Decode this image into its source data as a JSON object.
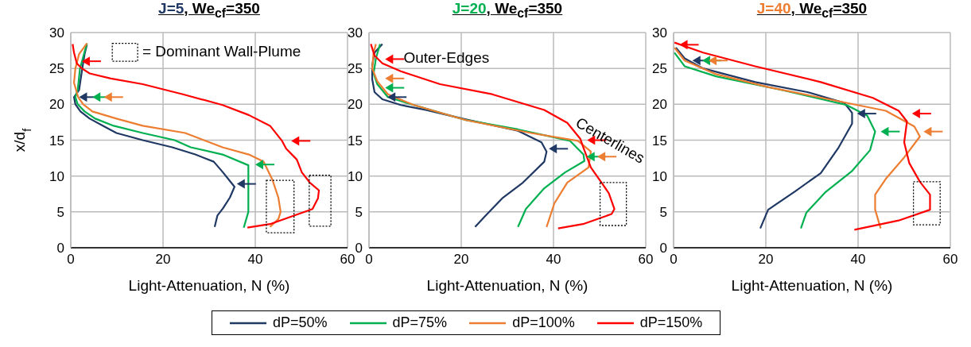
{
  "chart_data": [
    {
      "type": "line",
      "title": "J=5, We$_{cf}$=350",
      "xlabel": "Light-Attenuation, N (%)",
      "ylabel": "x/d$_{f}$",
      "xlim": [
        0,
        60
      ],
      "xticks": [
        0,
        20,
        40,
        60
      ],
      "ylim": [
        0,
        30
      ],
      "yticks": [
        0,
        5,
        10,
        15,
        20,
        25,
        30
      ],
      "grid": true,
      "marker": "none",
      "line_style": "solid",
      "annotations": [
        "= Dominant Wall-Plume"
      ],
      "series": [
        {
          "color": "#203864",
          "x": [
            31.2,
            31.8,
            33,
            34.5,
            35.5,
            34.5,
            33,
            31,
            27,
            22,
            15.6,
            9.9,
            7,
            4.1,
            2.1,
            1,
            0.7,
            1.8,
            2.5,
            3,
            3.5
          ],
          "values": [
            2.9,
            4.5,
            5.5,
            7,
            8.5,
            9.3,
            10.5,
            12,
            13,
            14,
            15,
            16,
            17,
            18,
            19,
            20,
            21,
            22,
            25,
            27,
            28.3
          ]
        },
        {
          "color": "#00b050",
          "x": [
            37.5,
            38.5,
            38.5,
            38.5,
            38.5,
            32.9,
            26,
            22.5,
            15.6,
            9.3,
            5.3,
            3,
            1.5,
            1,
            1.5,
            2,
            3.5
          ],
          "values": [
            2.8,
            5,
            8,
            10,
            11.5,
            13,
            14,
            15,
            16,
            17,
            18,
            19,
            20,
            21,
            22,
            25,
            28.5
          ]
        },
        {
          "color": "#ed7d31",
          "x": [
            43.2,
            45,
            45.5,
            45,
            43.7,
            41.8,
            38.6,
            32.9,
            24.8,
            15.6,
            9.9,
            4.7,
            2.7,
            1.6,
            0.7,
            1,
            1.8,
            3.5
          ],
          "values": [
            2.9,
            4,
            5,
            7,
            9.5,
            12,
            13,
            14,
            16,
            17,
            18,
            19,
            20,
            21,
            23,
            25,
            27,
            28.5
          ]
        },
        {
          "color": "#ff0000",
          "x": [
            38.3,
            43.2,
            52.4,
            53.6,
            53.8,
            51.8,
            50.1,
            49,
            46.7,
            45.8,
            43.2,
            38.6,
            32.9,
            24.3,
            15.6,
            8.7,
            4.1,
            2.4,
            1.3,
            0.7,
            0.4
          ],
          "values": [
            2.8,
            3.3,
            5.4,
            6.9,
            8,
            9.1,
            10.5,
            12.3,
            13.8,
            14.9,
            17,
            18.5,
            19.9,
            21.4,
            22.8,
            23.6,
            24.3,
            25,
            25.7,
            27.2,
            28.4
          ]
        }
      ]
    },
    {
      "type": "line",
      "title": "J=20, We$_{cf}$=350",
      "xlabel": "Light-Attenuation, N (%)",
      "xlim": [
        0,
        60
      ],
      "xticks": [
        0,
        20,
        40,
        60
      ],
      "ylim": [
        0,
        30
      ],
      "yticks": [
        0,
        5,
        10,
        15,
        20,
        25,
        30
      ],
      "grid": true,
      "marker": "none",
      "line_style": "solid",
      "legend": "bottom",
      "annotations": [
        "Outer-Edges",
        "Centerlines"
      ],
      "series": [
        {
          "name": "dP=50%",
          "color": "#203864",
          "x": [
            23,
            25,
            28.9,
            33.4,
            38,
            38.5,
            37.4,
            32.3,
            21,
            12.5,
            6.9,
            2.9,
            1.2,
            0.7,
            0.7,
            1.2,
            2.9
          ],
          "values": [
            2.9,
            4.3,
            6.9,
            9.1,
            12,
            13.4,
            14.7,
            16.3,
            17.9,
            19.2,
            19.9,
            20.7,
            21.7,
            23.5,
            25.4,
            27.2,
            28.4
          ]
        },
        {
          "name": "dP=75%",
          "color": "#00b050",
          "x": [
            32.3,
            34,
            38,
            42.5,
            46.7,
            46.5,
            43.6,
            32.3,
            21,
            9.7,
            4.1,
            1.8,
            1,
            1.5,
            2.4
          ],
          "values": [
            2.9,
            5.4,
            8.3,
            10.5,
            12.1,
            13,
            14.9,
            16.5,
            17.8,
            19.9,
            21,
            22.8,
            24.3,
            26.4,
            28.4
          ]
        },
        {
          "name": "dP=100%",
          "color": "#ed7d31",
          "x": [
            38.5,
            40.2,
            43,
            47.6,
            48.1,
            45.3,
            35.1,
            21,
            9.7,
            4.1,
            1.8,
            0.7,
            1,
            1.5
          ],
          "values": [
            2.9,
            6.2,
            9.1,
            11.2,
            13.4,
            14.9,
            16,
            17.8,
            19.9,
            21.4,
            23.2,
            25,
            27.2,
            28.4
          ]
        },
        {
          "name": "dP=150%",
          "color": "#ff0000",
          "x": [
            41,
            46.4,
            52.6,
            53.2,
            52,
            50.4,
            48.1,
            46.4,
            45.8,
            43,
            38,
            26.7,
            15.4,
            6.9,
            2.9,
            1.2,
            0.4
          ],
          "values": [
            2.7,
            3.3,
            4.7,
            5.4,
            7.6,
            9.1,
            11.2,
            14.1,
            15.2,
            17.4,
            19.2,
            21.4,
            22.8,
            24.6,
            25.7,
            26.8,
            28.4
          ]
        }
      ]
    },
    {
      "type": "line",
      "title": "J=40, We$_{cf}$=350",
      "xlabel": "Light-Attenuation, N (%)",
      "xlim": [
        0,
        60
      ],
      "xticks": [
        0,
        20,
        40,
        60
      ],
      "ylim": [
        0,
        30
      ],
      "yticks": [
        0,
        5,
        10,
        15,
        20,
        25,
        30
      ],
      "grid": true,
      "marker": "none",
      "line_style": "solid",
      "series": [
        {
          "color": "#203864",
          "x": [
            18.8,
            20.5,
            26.2,
            31.9,
            35.8,
            38.7,
            38.7,
            37,
            29,
            17.7,
            6.4,
            2.4,
            0.5
          ],
          "values": [
            2.7,
            5.3,
            7.8,
            10.4,
            14,
            17.3,
            18.8,
            20.2,
            21.7,
            23.1,
            25,
            26.4,
            27.9
          ]
        },
        {
          "color": "#00b050",
          "x": [
            27.6,
            28.8,
            33,
            38.7,
            42.6,
            43.7,
            42,
            37.5,
            23.4,
            9.2,
            2.4,
            0.2
          ],
          "values": [
            2.7,
            4.9,
            7.8,
            10.7,
            13.6,
            16.2,
            18.4,
            19.9,
            22,
            23.9,
            25.3,
            27.2
          ]
        },
        {
          "color": "#ed7d31",
          "x": [
            44.9,
            43.7,
            43.7,
            46,
            50,
            53.4,
            52.2,
            46,
            37.5,
            20.5,
            9.2,
            2.4,
            0.2
          ],
          "values": [
            2.7,
            5.3,
            7.4,
            9.6,
            12.6,
            15.5,
            16.9,
            19.1,
            20.2,
            22.4,
            24.2,
            26.1,
            27.9
          ]
        },
        {
          "color": "#ff0000",
          "x": [
            39.2,
            48.8,
            55.6,
            55.6,
            53.4,
            51.1,
            50,
            50.6,
            48.8,
            43.2,
            31.9,
            17.7,
            6.4,
            0.2
          ],
          "values": [
            2.5,
            3.8,
            5.3,
            7.4,
            9.2,
            11.8,
            14.7,
            17.6,
            19.1,
            20.9,
            23.1,
            25.3,
            27.2,
            28.6
          ]
        }
      ]
    }
  ]
}
